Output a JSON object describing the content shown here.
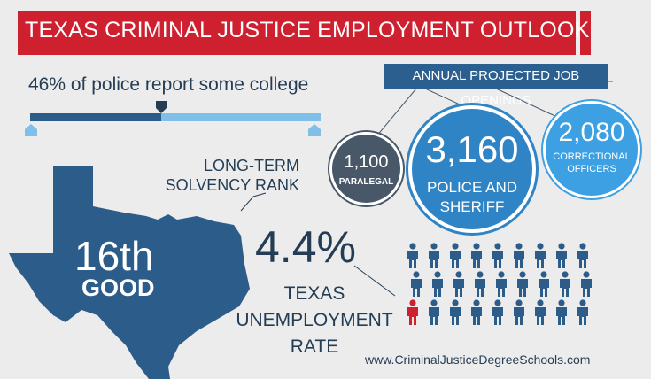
{
  "header": {
    "title": "TEXAS CRIMINAL JUSTICE EMPLOYMENT OUTLOOK"
  },
  "education": {
    "text": "46% of police report some college",
    "percent": 46
  },
  "solvency": {
    "label_line1": "LONG-TERM",
    "label_line2": "SOLVENCY RANK",
    "rank": "16th",
    "rating": "GOOD"
  },
  "unemployment": {
    "value": "4.4%",
    "label_line1": "TEXAS",
    "label_line2": "UNEMPLOYMENT",
    "label_line3": "RATE",
    "people_total": 27,
    "people_highlighted": 1
  },
  "jobs": {
    "title": "ANNUAL PROJECTED JOB OPENINGS",
    "paralegal": {
      "value": "1,100",
      "label": "PARALEGAL"
    },
    "police": {
      "value": "3,160",
      "label_line1": "POLICE AND",
      "label_line2": "SHERIFF"
    },
    "correctional": {
      "value": "2,080",
      "label_line1": "CORRECTIONAL",
      "label_line2": "OFFICERS"
    }
  },
  "footer": {
    "url": "www.CriminalJusticeDegreeSchools.com"
  },
  "colors": {
    "red": "#cf2030",
    "navy": "#2c5c8a",
    "light_blue": "#7fbfe8",
    "dark_text": "#253d54",
    "gray_bubble": "#485868",
    "police_blue": "#2f84c6",
    "corr_blue": "#3ca0e2",
    "highlight_person": "#cf2030",
    "person": "#2c5c8a"
  }
}
